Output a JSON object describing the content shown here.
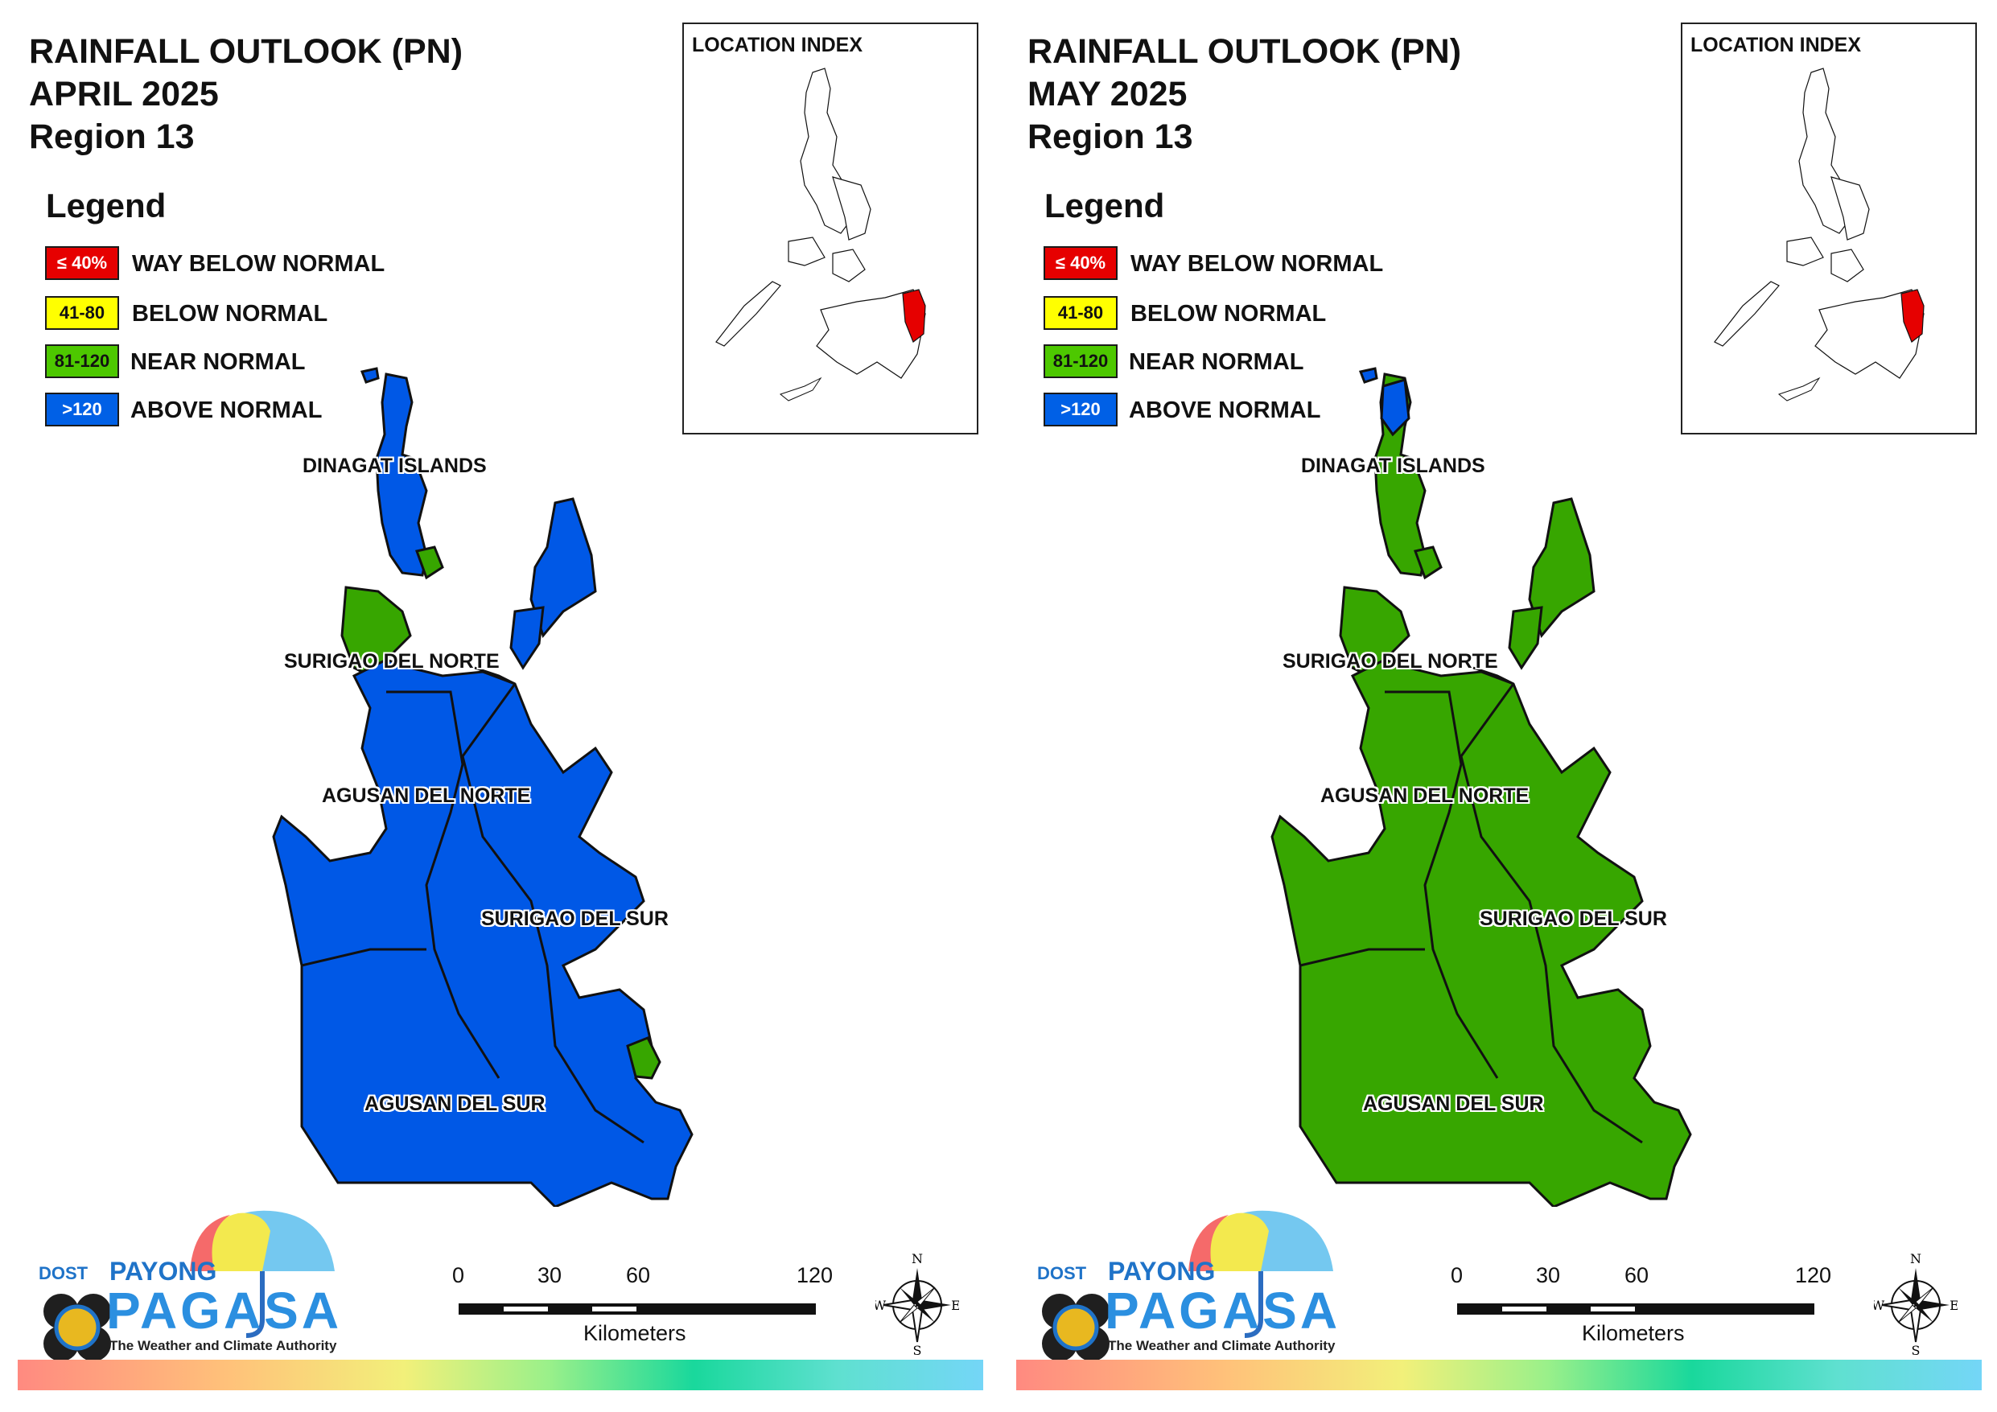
{
  "panels": [
    {
      "title_line1": "RAINFALL OUTLOOK (PN)",
      "title_line2": "APRIL 2025",
      "title_line3": "Region 13",
      "region_color": "#0058e6",
      "minor_color": "#37a600"
    },
    {
      "title_line1": "RAINFALL OUTLOOK (PN)",
      "title_line2": "MAY 2025",
      "title_line3": "Region 13",
      "region_color": "#37a600",
      "minor_color": "#37a600"
    }
  ],
  "legend": {
    "title": "Legend",
    "items": [
      {
        "box": "≤ 40%",
        "label": "WAY BELOW NORMAL",
        "color": "#e60000",
        "text_color": "#ffffff"
      },
      {
        "box": "41-80",
        "label": "BELOW NORMAL",
        "color": "#ffff00",
        "text_color": "#111111"
      },
      {
        "box": "81-120",
        "label": "NEAR NORMAL",
        "color": "#4dc800",
        "text_color": "#111111"
      },
      {
        "box": ">120",
        "label": "ABOVE NORMAL",
        "color": "#0060e6",
        "text_color": "#ffffff"
      }
    ]
  },
  "inset": {
    "title": "LOCATION INDEX",
    "highlight_color": "#e60000"
  },
  "provinces": [
    "DINAGAT ISLANDS",
    "SURIGAO DEL NORTE",
    "AGUSAN DEL NORTE",
    "SURIGAO DEL SUR",
    "AGUSAN DEL SUR"
  ],
  "logo": {
    "dost": "DOST",
    "payong": "PAYONG",
    "pagasa": "PAGASA",
    "tagline": "The Weather and Climate Authority"
  },
  "scale_bar": {
    "ticks": [
      "0",
      "30",
      "60",
      "120"
    ],
    "unit": "Kilometers"
  },
  "compass": {
    "n": "N",
    "s": "S",
    "e": "E",
    "w": "W"
  }
}
